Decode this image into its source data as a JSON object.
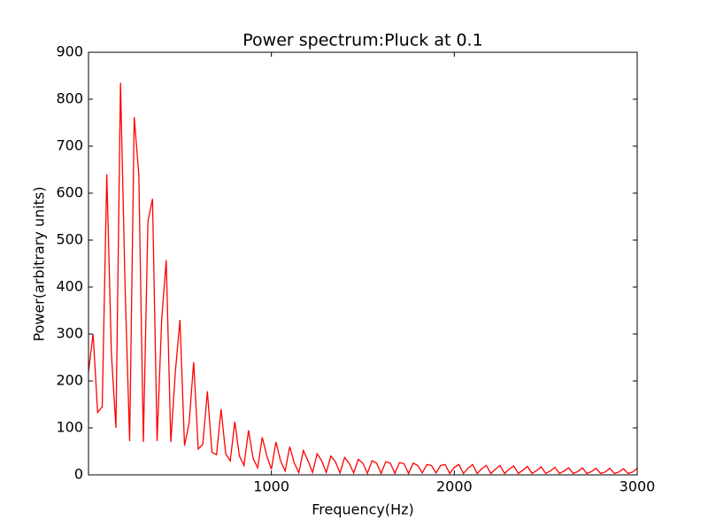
{
  "chart_data": {
    "type": "line",
    "title": "Power spectrum:Pluck at 0.1",
    "xlabel": "Frequency(Hz)",
    "ylabel": "Power(arbitrary units)",
    "xlim": [
      0,
      3000
    ],
    "ylim": [
      0,
      900
    ],
    "xticks": [
      1000,
      2000,
      3000
    ],
    "yticks": [
      0,
      100,
      200,
      300,
      400,
      500,
      600,
      700,
      800,
      900
    ],
    "grid": false,
    "x": [
      0,
      25,
      50,
      75,
      100,
      125,
      150,
      175,
      200,
      225,
      250,
      275,
      300,
      325,
      350,
      375,
      400,
      425,
      450,
      475,
      500,
      525,
      550,
      575,
      600,
      625,
      650,
      675,
      700,
      725,
      750,
      775,
      800,
      825,
      850,
      875,
      900,
      925,
      950,
      975,
      1000,
      1025,
      1050,
      1075,
      1100,
      1125,
      1150,
      1175,
      1200,
      1225,
      1250,
      1275,
      1300,
      1325,
      1350,
      1375,
      1400,
      1425,
      1450,
      1475,
      1500,
      1525,
      1550,
      1575,
      1600,
      1625,
      1650,
      1675,
      1700,
      1725,
      1750,
      1775,
      1800,
      1825,
      1850,
      1875,
      1900,
      1925,
      1950,
      1975,
      2000,
      2025,
      2050,
      2075,
      2100,
      2125,
      2150,
      2175,
      2200,
      2225,
      2250,
      2275,
      2300,
      2325,
      2350,
      2375,
      2400,
      2425,
      2450,
      2475,
      2500,
      2525,
      2550,
      2575,
      2600,
      2625,
      2650,
      2675,
      2700,
      2725,
      2750,
      2775,
      2800,
      2825,
      2850,
      2875,
      2900,
      2925,
      2950,
      2975,
      3000
    ],
    "series": [
      {
        "color": "#ff0000",
        "values": [
          220,
          300,
          133,
          145,
          640,
          260,
          100,
          835,
          400,
          72,
          762,
          640,
          70,
          540,
          588,
          72,
          330,
          457,
          70,
          220,
          330,
          62,
          110,
          240,
          55,
          65,
          178,
          48,
          43,
          140,
          45,
          30,
          113,
          40,
          20,
          95,
          35,
          15,
          80,
          40,
          12,
          70,
          30,
          8,
          60,
          25,
          5,
          52,
          30,
          5,
          45,
          30,
          5,
          40,
          28,
          4,
          37,
          25,
          4,
          33,
          25,
          3,
          30,
          25,
          3,
          28,
          25,
          3,
          26,
          24,
          3,
          25,
          20,
          4,
          22,
          20,
          4,
          20,
          22,
          3,
          16,
          22,
          3,
          14,
          22,
          3,
          13,
          20,
          3,
          12,
          20,
          3,
          12,
          19,
          3,
          10,
          18,
          3,
          9,
          17,
          3,
          8,
          16,
          3,
          8,
          15,
          3,
          7,
          15,
          3,
          7,
          14,
          3,
          6,
          14,
          3,
          6,
          13,
          3,
          6,
          14
        ]
      }
    ]
  }
}
